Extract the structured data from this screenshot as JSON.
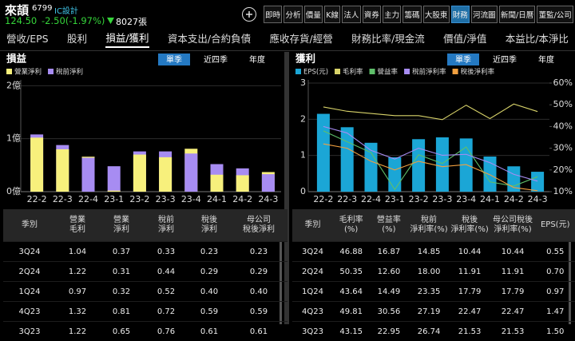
{
  "header": {
    "name": "來頡",
    "code": "6799",
    "industry": "IC設計",
    "price": "124.50",
    "change": "-2.50(-1.97%)",
    "volume": "8027張",
    "tabs": [
      "即時",
      "分析",
      "價量",
      "K線",
      "法人",
      "資券",
      "主力",
      "籌碼",
      "大股東",
      "財務",
      "河流圖",
      "新聞/日曆",
      "董監/公司"
    ],
    "active_tab": 9
  },
  "nav": {
    "items": [
      "營收/EPS",
      "股利",
      "損益/獲利",
      "資本支出/合約負債",
      "應收存貨/經營",
      "財務比率/現金流",
      "價值/淨值",
      "本益比/本淨比"
    ],
    "active": 2
  },
  "panels": [
    {
      "toggles": [
        "單季",
        "近四季",
        "年度"
      ],
      "active_toggle": 0,
      "table": {
        "columns": [
          "季別",
          "營業\n毛利",
          "營業\n淨利",
          "稅前\n淨利",
          "稅後\n淨利",
          "母公司\n稅後淨利"
        ],
        "rows": [
          [
            "3Q24",
            "1.04",
            "0.37",
            "0.33",
            "0.23",
            "0.23"
          ],
          [
            "2Q24",
            "1.22",
            "0.31",
            "0.44",
            "0.29",
            "0.29"
          ],
          [
            "1Q24",
            "0.97",
            "0.32",
            "0.52",
            "0.40",
            "0.40"
          ],
          [
            "4Q23",
            "1.32",
            "0.81",
            "0.72",
            "0.59",
            "0.59"
          ],
          [
            "3Q23",
            "1.22",
            "0.65",
            "0.76",
            "0.61",
            "0.61"
          ]
        ]
      }
    },
    {
      "toggles": [
        "單季",
        "近四季",
        "年度"
      ],
      "active_toggle": 0,
      "table": {
        "columns": [
          "季別",
          "毛利率\n(%)",
          "營益率\n(%)",
          "稅前\n淨利率(%)",
          "稅後\n淨利率(%)",
          "母公司稅後\n淨利率(%)",
          "EPS(元)"
        ],
        "rows": [
          [
            "3Q24",
            "46.88",
            "16.87",
            "14.85",
            "10.44",
            "10.44",
            "0.55"
          ],
          [
            "2Q24",
            "50.35",
            "12.60",
            "18.00",
            "11.91",
            "11.91",
            "0.70"
          ],
          [
            "1Q24",
            "43.64",
            "14.49",
            "23.35",
            "17.79",
            "17.79",
            "0.97"
          ],
          [
            "4Q23",
            "49.81",
            "30.56",
            "27.19",
            "22.47",
            "22.47",
            "1.47"
          ],
          [
            "3Q23",
            "43.15",
            "22.95",
            "26.74",
            "21.53",
            "21.53",
            "1.50"
          ]
        ]
      }
    }
  ],
  "chart_data": [
    {
      "type": "bar",
      "title": "損益",
      "categories": [
        "22-2",
        "22-3",
        "22-4",
        "23-1",
        "23-2",
        "23-3",
        "23-4",
        "24-1",
        "24-2",
        "24-3"
      ],
      "series": [
        {
          "name": "營業淨利",
          "color": "#f7f07c",
          "values": [
            1.02,
            0.8,
            0.66,
            0.02,
            0.7,
            0.65,
            0.81,
            0.32,
            0.31,
            0.37
          ]
        },
        {
          "name": "稅前淨利",
          "color": "#a78cf2",
          "values": [
            1.08,
            0.88,
            0.64,
            0.48,
            0.76,
            0.76,
            0.72,
            0.52,
            0.44,
            0.33
          ]
        }
      ],
      "ylim": [
        0,
        2.05
      ],
      "yticks": [
        {
          "value": 0,
          "label": "0億"
        },
        {
          "value": 1,
          "label": "1億"
        },
        {
          "value": 2,
          "label": "2億"
        }
      ],
      "grid": true
    },
    {
      "type": "bar-line",
      "title": "獲利",
      "categories": [
        "22-2",
        "22-3",
        "22-4",
        "23-1",
        "23-2",
        "23-3",
        "23-4",
        "24-1",
        "24-2",
        "24-3"
      ],
      "series": [
        {
          "name": "EPS(元)",
          "color": "#1ba6d6",
          "values": [
            2.15,
            1.78,
            1.35,
            0.95,
            1.45,
            1.5,
            1.47,
            0.97,
            0.7,
            0.55
          ]
        },
        {
          "name": "毛利率",
          "color": "#d9d46a",
          "axis": "y2",
          "values": [
            49,
            47,
            46,
            45,
            45,
            43.15,
            49.81,
            43.64,
            50.35,
            46.88
          ]
        },
        {
          "name": "營益率",
          "color": "#5fbf6a",
          "axis": "y2",
          "values": [
            38,
            33,
            28,
            11,
            27,
            22.95,
            30.56,
            14.49,
            12.6,
            16.87
          ]
        },
        {
          "name": "稅前淨利率",
          "color": "#a78cf2",
          "axis": "y2",
          "values": [
            40,
            37,
            29,
            25,
            30,
            26.74,
            27.19,
            23.35,
            18,
            14.85
          ]
        },
        {
          "name": "稅後淨利率",
          "color": "#f0a040",
          "axis": "y2",
          "values": [
            32,
            30,
            24,
            20,
            24,
            21.53,
            22.47,
            17.79,
            11.91,
            10.44
          ]
        }
      ],
      "ylim": [
        0,
        3
      ],
      "yticks": [
        0,
        1,
        2,
        3
      ],
      "y2lim": [
        10,
        60
      ],
      "y2ticks": [
        {
          "value": 10,
          "label": "10%"
        },
        {
          "value": 20,
          "label": "20%"
        },
        {
          "value": 30,
          "label": "30%"
        },
        {
          "value": 40,
          "label": "40%"
        },
        {
          "value": 50,
          "label": "50%"
        },
        {
          "value": 60,
          "label": "60%"
        }
      ],
      "grid": true
    }
  ]
}
